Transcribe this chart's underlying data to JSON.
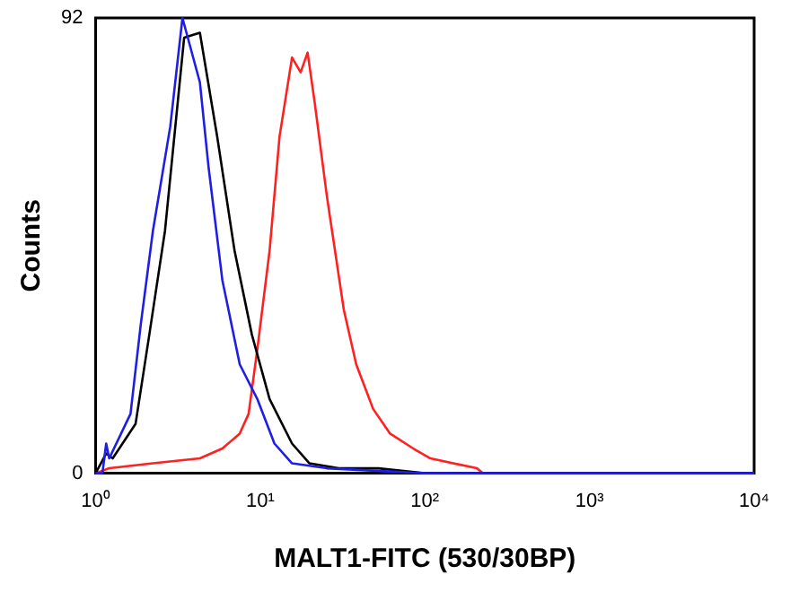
{
  "chart_data": {
    "type": "line",
    "xlabel": "MALT1-FITC (530/30BP)",
    "ylabel": "Counts",
    "log": "x",
    "grid": false,
    "legend": false,
    "marker": "none",
    "line_style": "solid",
    "xlim": [
      1,
      10000
    ],
    "ylim": [
      0,
      92
    ],
    "xticks": [
      {
        "value": 1,
        "label": "10⁰"
      },
      {
        "value": 10,
        "label": "10¹"
      },
      {
        "value": 100,
        "label": "10²"
      },
      {
        "value": 1000,
        "label": "10³"
      },
      {
        "value": 10000,
        "label": "10⁴"
      }
    ],
    "yticks": [
      0,
      92
    ],
    "series": [
      {
        "color": "#1e1ee6",
        "x": [
          1,
          1.1,
          1.16,
          1.21,
          1.63,
          1.88,
          2.23,
          2.84,
          3.37,
          4.3,
          4.85,
          5.89,
          7.51,
          9.6,
          12.2,
          15.6,
          25.4,
          100,
          10000
        ],
        "values": [
          0,
          0,
          6,
          3,
          12,
          30,
          49,
          70,
          92,
          79,
          62,
          39,
          22,
          15,
          6,
          2,
          1,
          0,
          0
        ]
      },
      {
        "color": "#000000",
        "x": [
          1,
          1.16,
          1.27,
          1.75,
          2.12,
          2.64,
          3.45,
          4.3,
          5.48,
          6.98,
          8.9,
          11.4,
          15.6,
          19.9,
          30,
          52.3,
          100,
          10000
        ],
        "values": [
          0,
          4,
          3,
          10,
          28,
          49,
          88,
          89,
          68,
          45,
          28,
          15,
          6,
          2,
          1,
          1,
          0,
          0
        ]
      },
      {
        "color": "#ff2020",
        "x": [
          1,
          1.21,
          2.23,
          4.3,
          5.89,
          7.5,
          8.5,
          9.6,
          11.4,
          13.1,
          15.6,
          17.6,
          19.4,
          21.4,
          25.4,
          32.2,
          38.3,
          48.5,
          61.5,
          85,
          108,
          207,
          225,
          10000
        ],
        "values": [
          0,
          1,
          2,
          3,
          5,
          8,
          12,
          25,
          45,
          68,
          84,
          81,
          85,
          75,
          56,
          33,
          22,
          13,
          8,
          5,
          3,
          1,
          0,
          0
        ]
      }
    ]
  }
}
